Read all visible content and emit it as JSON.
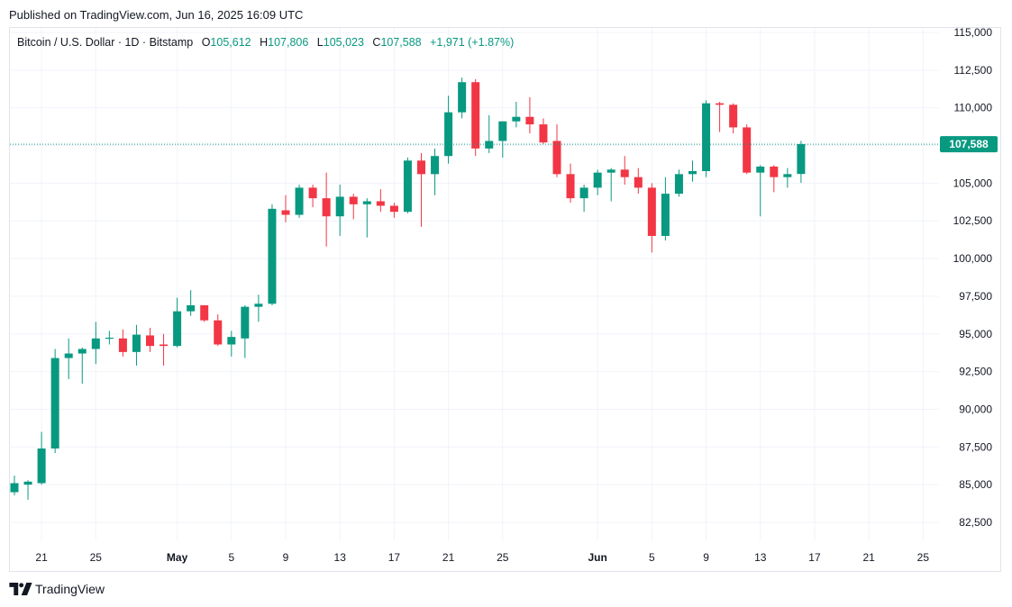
{
  "header": {
    "published": "Published on TradingView.com, Jun 16, 2025 16:09 UTC"
  },
  "legend": {
    "symbol": "Bitcoin / U.S. Dollar · 1D · Bitstamp",
    "open_key": "O",
    "open": "105,612",
    "high_key": "H",
    "high": "107,806",
    "low_key": "L",
    "low": "105,023",
    "close_key": "C",
    "close": "107,588",
    "change": "+1,971 (+1.87%)"
  },
  "brand": {
    "name": "TradingView",
    "icon": "tradingview-logo-icon"
  },
  "colors": {
    "up": "#089981",
    "down": "#f23645",
    "grid": "#f0f3fa",
    "price_line": "#089981"
  },
  "chart_data": {
    "type": "candlestick",
    "title": "",
    "xlabel": "",
    "ylabel": "",
    "ylim": [
      81000,
      115500
    ],
    "grid": true,
    "last_price": 107588,
    "last_price_label": "107,588",
    "y_ticks": [
      82500,
      85000,
      87500,
      90000,
      92500,
      95000,
      97500,
      100000,
      102500,
      105000,
      107500,
      110000,
      112500,
      115000
    ],
    "y_tick_labels": [
      "82,500",
      "85,000",
      "87,500",
      "90,000",
      "92,500",
      "95,000",
      "97,500",
      "100,000",
      "102,500",
      "105,000",
      "107,500",
      "110,000",
      "112,500",
      "115,000"
    ],
    "x_ticks": [
      {
        "date": "2025-04-21",
        "label": "21",
        "bold": false
      },
      {
        "date": "2025-04-25",
        "label": "25",
        "bold": false
      },
      {
        "date": "2025-05-01",
        "label": "May",
        "bold": true
      },
      {
        "date": "2025-05-05",
        "label": "5",
        "bold": false
      },
      {
        "date": "2025-05-09",
        "label": "9",
        "bold": false
      },
      {
        "date": "2025-05-13",
        "label": "13",
        "bold": false
      },
      {
        "date": "2025-05-17",
        "label": "17",
        "bold": false
      },
      {
        "date": "2025-05-21",
        "label": "21",
        "bold": false
      },
      {
        "date": "2025-05-25",
        "label": "25",
        "bold": false
      },
      {
        "date": "2025-06-01",
        "label": "Jun",
        "bold": true
      },
      {
        "date": "2025-06-05",
        "label": "5",
        "bold": false
      },
      {
        "date": "2025-06-09",
        "label": "9",
        "bold": false
      },
      {
        "date": "2025-06-13",
        "label": "13",
        "bold": false
      },
      {
        "date": "2025-06-17",
        "label": "17",
        "bold": false
      },
      {
        "date": "2025-06-21",
        "label": "21",
        "bold": false
      },
      {
        "date": "2025-06-25",
        "label": "25",
        "bold": false
      }
    ],
    "candles": [
      {
        "date": "2025-04-19",
        "o": 84500,
        "h": 85600,
        "l": 84300,
        "c": 85100
      },
      {
        "date": "2025-04-20",
        "o": 85000,
        "h": 85300,
        "l": 84000,
        "c": 85200
      },
      {
        "date": "2025-04-21",
        "o": 85100,
        "h": 88500,
        "l": 85000,
        "c": 87400
      },
      {
        "date": "2025-04-22",
        "o": 87400,
        "h": 94000,
        "l": 87100,
        "c": 93400
      },
      {
        "date": "2025-04-23",
        "o": 93400,
        "h": 94700,
        "l": 92000,
        "c": 93700
      },
      {
        "date": "2025-04-24",
        "o": 93700,
        "h": 94100,
        "l": 91700,
        "c": 94000
      },
      {
        "date": "2025-04-25",
        "o": 94000,
        "h": 95800,
        "l": 93000,
        "c": 94700
      },
      {
        "date": "2025-04-26",
        "o": 94700,
        "h": 95200,
        "l": 94300,
        "c": 94750
      },
      {
        "date": "2025-04-27",
        "o": 94700,
        "h": 95300,
        "l": 93500,
        "c": 93800
      },
      {
        "date": "2025-04-28",
        "o": 93800,
        "h": 95600,
        "l": 92900,
        "c": 94950
      },
      {
        "date": "2025-04-29",
        "o": 94900,
        "h": 95400,
        "l": 93800,
        "c": 94200
      },
      {
        "date": "2025-04-30",
        "o": 94300,
        "h": 95000,
        "l": 92900,
        "c": 94200
      },
      {
        "date": "2025-05-01",
        "o": 94200,
        "h": 97400,
        "l": 94100,
        "c": 96500
      },
      {
        "date": "2025-05-02",
        "o": 96500,
        "h": 97900,
        "l": 96200,
        "c": 96900
      },
      {
        "date": "2025-05-03",
        "o": 96900,
        "h": 96900,
        "l": 95800,
        "c": 95900
      },
      {
        "date": "2025-05-04",
        "o": 95900,
        "h": 96300,
        "l": 94200,
        "c": 94300
      },
      {
        "date": "2025-05-05",
        "o": 94300,
        "h": 95200,
        "l": 93500,
        "c": 94800
      },
      {
        "date": "2025-05-06",
        "o": 94700,
        "h": 96900,
        "l": 93400,
        "c": 96800
      },
      {
        "date": "2025-05-07",
        "o": 96800,
        "h": 97600,
        "l": 95800,
        "c": 97000
      },
      {
        "date": "2025-05-08",
        "o": 97000,
        "h": 103600,
        "l": 96900,
        "c": 103300
      },
      {
        "date": "2025-05-09",
        "o": 103200,
        "h": 104200,
        "l": 102400,
        "c": 102900
      },
      {
        "date": "2025-05-10",
        "o": 102900,
        "h": 104900,
        "l": 102700,
        "c": 104700
      },
      {
        "date": "2025-05-11",
        "o": 104700,
        "h": 104900,
        "l": 103400,
        "c": 104000
      },
      {
        "date": "2025-05-12",
        "o": 104000,
        "h": 105700,
        "l": 100800,
        "c": 102800
      },
      {
        "date": "2025-05-13",
        "o": 102800,
        "h": 104900,
        "l": 101500,
        "c": 104100
      },
      {
        "date": "2025-05-14",
        "o": 104100,
        "h": 104300,
        "l": 102600,
        "c": 103600
      },
      {
        "date": "2025-05-15",
        "o": 103600,
        "h": 104000,
        "l": 101400,
        "c": 103800
      },
      {
        "date": "2025-05-16",
        "o": 103800,
        "h": 104600,
        "l": 103100,
        "c": 103500
      },
      {
        "date": "2025-05-17",
        "o": 103500,
        "h": 103700,
        "l": 102700,
        "c": 103100
      },
      {
        "date": "2025-05-18",
        "o": 103100,
        "h": 106700,
        "l": 103000,
        "c": 106500
      },
      {
        "date": "2025-05-19",
        "o": 106500,
        "h": 107000,
        "l": 102100,
        "c": 105600
      },
      {
        "date": "2025-05-20",
        "o": 105600,
        "h": 107300,
        "l": 104200,
        "c": 106800
      },
      {
        "date": "2025-05-21",
        "o": 106800,
        "h": 110800,
        "l": 106300,
        "c": 109700
      },
      {
        "date": "2025-05-22",
        "o": 109700,
        "h": 112000,
        "l": 109300,
        "c": 111700
      },
      {
        "date": "2025-05-23",
        "o": 111700,
        "h": 111900,
        "l": 106800,
        "c": 107300
      },
      {
        "date": "2025-05-24",
        "o": 107300,
        "h": 109500,
        "l": 107000,
        "c": 107800
      },
      {
        "date": "2025-05-25",
        "o": 107800,
        "h": 109100,
        "l": 106700,
        "c": 109100
      },
      {
        "date": "2025-05-26",
        "o": 109100,
        "h": 110400,
        "l": 108700,
        "c": 109400
      },
      {
        "date": "2025-05-27",
        "o": 109400,
        "h": 110700,
        "l": 108300,
        "c": 108900
      },
      {
        "date": "2025-05-28",
        "o": 108900,
        "h": 109300,
        "l": 107600,
        "c": 107700
      },
      {
        "date": "2025-05-29",
        "o": 107800,
        "h": 108900,
        "l": 105400,
        "c": 105600
      },
      {
        "date": "2025-05-30",
        "o": 105600,
        "h": 106300,
        "l": 103700,
        "c": 104000
      },
      {
        "date": "2025-05-31",
        "o": 104000,
        "h": 104900,
        "l": 103100,
        "c": 104700
      },
      {
        "date": "2025-06-01",
        "o": 104700,
        "h": 105900,
        "l": 104200,
        "c": 105700
      },
      {
        "date": "2025-06-02",
        "o": 105700,
        "h": 106000,
        "l": 103800,
        "c": 105900
      },
      {
        "date": "2025-06-03",
        "o": 105900,
        "h": 106800,
        "l": 104900,
        "c": 105400
      },
      {
        "date": "2025-06-04",
        "o": 105400,
        "h": 106000,
        "l": 104300,
        "c": 104700
      },
      {
        "date": "2025-06-05",
        "o": 104700,
        "h": 105000,
        "l": 100400,
        "c": 101500
      },
      {
        "date": "2025-06-06",
        "o": 101500,
        "h": 105400,
        "l": 101200,
        "c": 104300
      },
      {
        "date": "2025-06-07",
        "o": 104300,
        "h": 105900,
        "l": 104100,
        "c": 105600
      },
      {
        "date": "2025-06-08",
        "o": 105600,
        "h": 106500,
        "l": 105100,
        "c": 105800
      },
      {
        "date": "2025-06-09",
        "o": 105800,
        "h": 110500,
        "l": 105400,
        "c": 110300
      },
      {
        "date": "2025-06-10",
        "o": 110300,
        "h": 110400,
        "l": 108400,
        "c": 110200
      },
      {
        "date": "2025-06-11",
        "o": 110200,
        "h": 110300,
        "l": 108300,
        "c": 108700
      },
      {
        "date": "2025-06-12",
        "o": 108700,
        "h": 108900,
        "l": 105600,
        "c": 105700
      },
      {
        "date": "2025-06-13",
        "o": 105700,
        "h": 106200,
        "l": 102800,
        "c": 106100
      },
      {
        "date": "2025-06-14",
        "o": 106100,
        "h": 106200,
        "l": 104400,
        "c": 105400
      },
      {
        "date": "2025-06-15",
        "o": 105400,
        "h": 106000,
        "l": 104700,
        "c": 105600
      },
      {
        "date": "2025-06-16",
        "o": 105612,
        "h": 107806,
        "l": 105023,
        "c": 107588
      }
    ]
  }
}
